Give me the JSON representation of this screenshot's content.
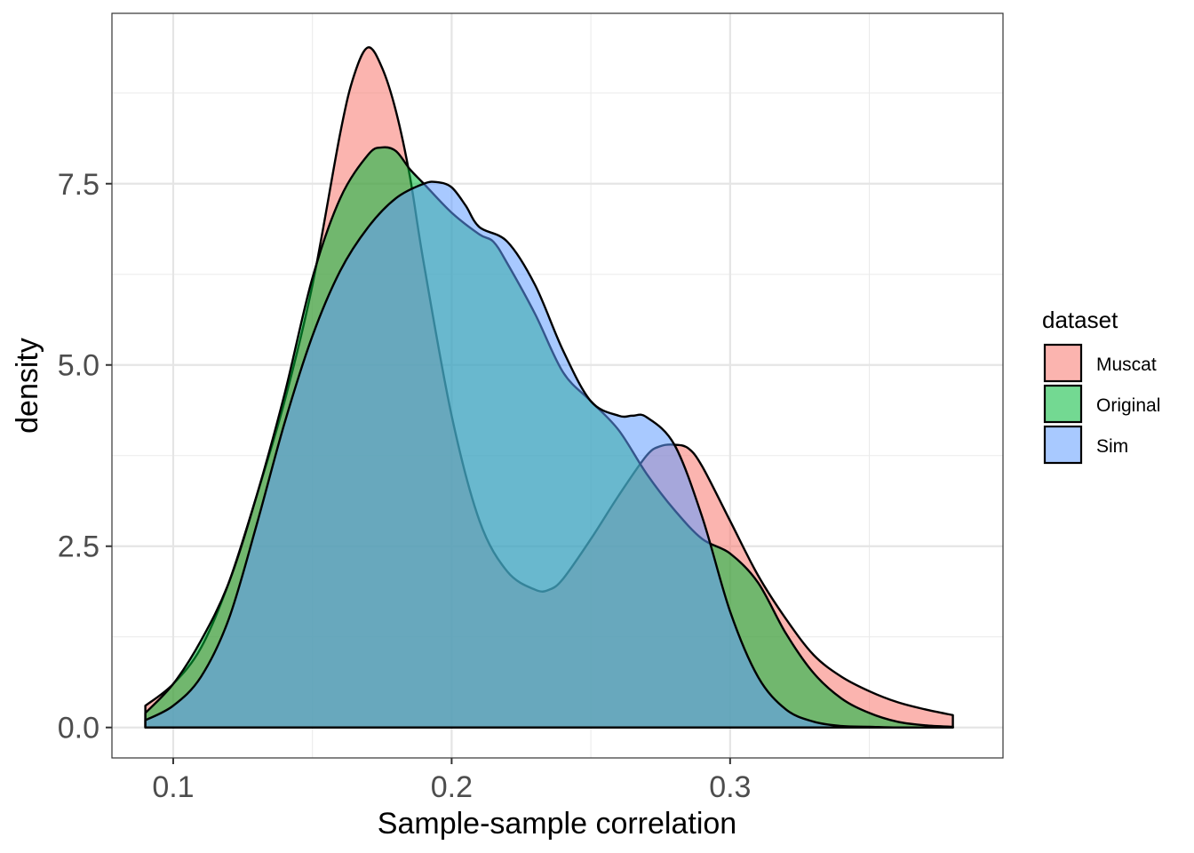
{
  "chart_data": {
    "type": "area",
    "subtype": "density",
    "title": "",
    "xlabel": "Sample-sample correlation",
    "ylabel": "density",
    "xlim": [
      0.078,
      0.398
    ],
    "ylim": [
      -0.42,
      9.85
    ],
    "x_ticks": [
      0.1,
      0.2,
      0.3
    ],
    "x_tick_labels": [
      "0.1",
      "0.2",
      "0.3"
    ],
    "y_ticks": [
      0,
      2.5,
      5,
      7.5
    ],
    "y_tick_labels": [
      "0.0",
      "2.5",
      "5.0",
      "7.5"
    ],
    "grid": true,
    "legend": {
      "title": "dataset",
      "position": "right"
    },
    "series": [
      {
        "name": "Muscat",
        "color": "#F8766D",
        "x": [
          0.09,
          0.1,
          0.11,
          0.12,
          0.13,
          0.14,
          0.15,
          0.16,
          0.165,
          0.17,
          0.175,
          0.18,
          0.185,
          0.19,
          0.2,
          0.21,
          0.22,
          0.23,
          0.235,
          0.24,
          0.25,
          0.26,
          0.27,
          0.275,
          0.28,
          0.285,
          0.29,
          0.3,
          0.31,
          0.32,
          0.33,
          0.34,
          0.35,
          0.36,
          0.37,
          0.38
        ],
        "y": [
          0.3,
          0.6,
          1.1,
          2.0,
          3.2,
          4.5,
          6.1,
          8.2,
          9.0,
          9.38,
          9.1,
          8.5,
          7.6,
          6.4,
          4.3,
          2.85,
          2.15,
          1.9,
          1.9,
          2.05,
          2.6,
          3.2,
          3.75,
          3.88,
          3.9,
          3.85,
          3.6,
          2.85,
          2.1,
          1.5,
          1.0,
          0.7,
          0.5,
          0.35,
          0.25,
          0.17
        ]
      },
      {
        "name": "Original",
        "color": "#00BA38",
        "x": [
          0.09,
          0.1,
          0.11,
          0.12,
          0.13,
          0.14,
          0.15,
          0.16,
          0.17,
          0.175,
          0.18,
          0.185,
          0.19,
          0.2,
          0.21,
          0.215,
          0.22,
          0.23,
          0.24,
          0.25,
          0.26,
          0.27,
          0.28,
          0.29,
          0.3,
          0.31,
          0.32,
          0.33,
          0.34,
          0.35,
          0.36,
          0.37,
          0.38
        ],
        "y": [
          0.2,
          0.6,
          1.2,
          2.0,
          3.2,
          4.6,
          6.2,
          7.3,
          7.9,
          8.0,
          7.95,
          7.7,
          7.5,
          7.1,
          6.8,
          6.7,
          6.4,
          5.7,
          4.9,
          4.5,
          4.1,
          3.5,
          3.0,
          2.6,
          2.4,
          2.0,
          1.3,
          0.75,
          0.4,
          0.2,
          0.08,
          0.03,
          0.01
        ]
      },
      {
        "name": "Sim",
        "color": "#619CFF",
        "x": [
          0.09,
          0.1,
          0.11,
          0.12,
          0.13,
          0.14,
          0.15,
          0.16,
          0.17,
          0.18,
          0.19,
          0.195,
          0.2,
          0.205,
          0.21,
          0.22,
          0.23,
          0.24,
          0.25,
          0.26,
          0.265,
          0.27,
          0.28,
          0.29,
          0.3,
          0.31,
          0.32,
          0.33,
          0.34,
          0.35,
          0.36,
          0.37,
          0.38
        ],
        "y": [
          0.1,
          0.3,
          0.7,
          1.5,
          2.8,
          4.2,
          5.4,
          6.3,
          6.9,
          7.3,
          7.5,
          7.52,
          7.45,
          7.2,
          6.9,
          6.7,
          6.1,
          5.2,
          4.5,
          4.3,
          4.3,
          4.28,
          3.9,
          2.9,
          1.6,
          0.7,
          0.25,
          0.08,
          0.02,
          0.01,
          0.0,
          0.0,
          0.0
        ]
      }
    ]
  }
}
